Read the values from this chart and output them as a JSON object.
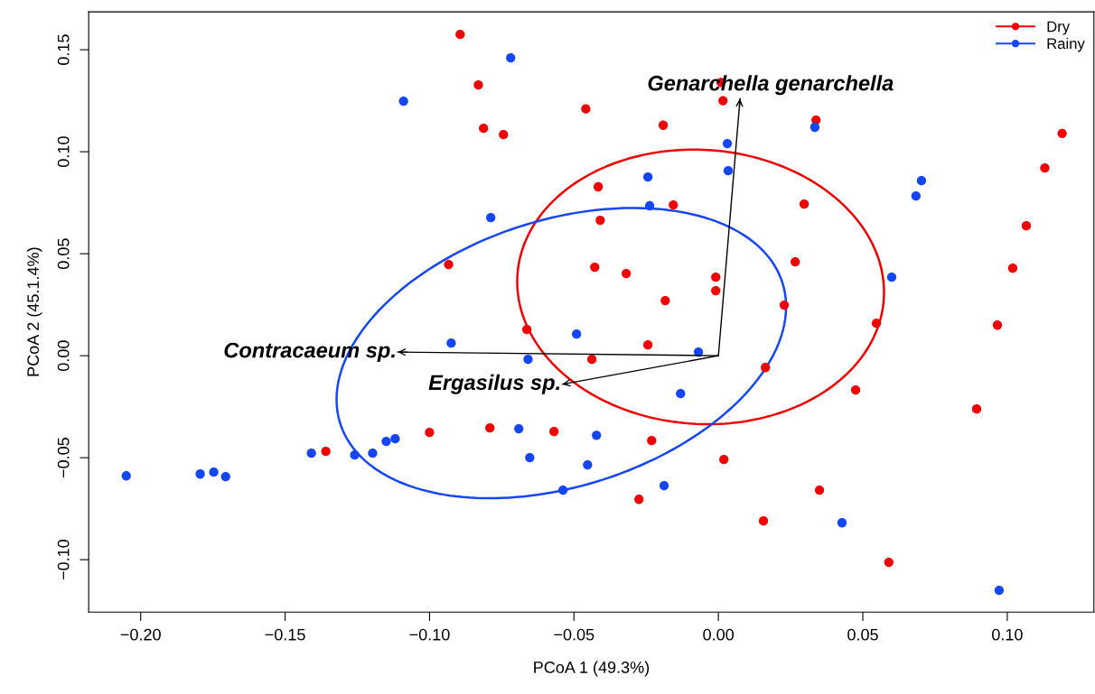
{
  "chart_data": {
    "type": "scatter",
    "xlabel": "PCoA 1 (49.3%)",
    "ylabel": "PCoA 2 (45.1.4%)",
    "xlim": [
      -0.218,
      0.13
    ],
    "ylim": [
      -0.1257,
      0.1686
    ],
    "xticks": [
      {
        "value": -0.2,
        "label": "−0.20"
      },
      {
        "value": -0.15,
        "label": "−0.15"
      },
      {
        "value": -0.1,
        "label": "−0.10"
      },
      {
        "value": -0.05,
        "label": "−0.05"
      },
      {
        "value": 0,
        "label": "0.00"
      },
      {
        "value": 0.05,
        "label": "0.05"
      },
      {
        "value": 0.1,
        "label": "0.10"
      }
    ],
    "yticks": [
      {
        "value": -0.1,
        "label": "−0.10"
      },
      {
        "value": -0.05,
        "label": "−0.05"
      },
      {
        "value": 0,
        "label": "0.00"
      },
      {
        "value": 0.05,
        "label": "0.05"
      },
      {
        "value": 0.1,
        "label": "0.10"
      },
      {
        "value": 0.15,
        "label": "0.15"
      }
    ],
    "grid": false,
    "legend": "top right",
    "marker": "circle",
    "series": [
      {
        "name": "Dry",
        "color": "#f00000",
        "x": [
          -0.0894,
          -0.0831,
          -0.0813,
          -0.0744,
          -0.0459,
          -0.0191,
          0.0009,
          0.0016,
          0.0338,
          0.119,
          0.113,
          -0.0416,
          -0.0409,
          -0.0156,
          0.0297,
          0.1066,
          0.1019,
          -0.0428,
          -0.0319,
          0.0266,
          -0.0009,
          -0.0009,
          -0.0184,
          0.0228,
          -0.0934,
          -0.0663,
          -0.1359,
          -0.1,
          -0.0791,
          -0.0569,
          -0.0438,
          0.0547,
          0.0966,
          -0.0244,
          0.0163,
          0.0475,
          0.0894,
          -0.0231,
          0.0019,
          0.035,
          -0.0275,
          0.0156,
          0.059
        ],
        "values": [
          0.1575,
          0.1327,
          0.1115,
          0.1084,
          0.121,
          0.113,
          0.134,
          0.125,
          0.1155,
          0.109,
          0.092,
          0.0828,
          0.0664,
          0.0739,
          0.0743,
          0.0637,
          0.0429,
          0.0434,
          0.0403,
          0.046,
          0.0385,
          0.0319,
          0.027,
          0.0248,
          0.0447,
          0.0128,
          -0.0469,
          -0.0376,
          -0.0354,
          -0.0372,
          -0.0018,
          0.0159,
          0.015,
          0.0053,
          -0.0058,
          -0.0168,
          -0.0261,
          -0.0416,
          -0.0509,
          -0.0659,
          -0.0704,
          -0.081,
          -0.1013
        ]
      },
      {
        "name": "Rainy",
        "color": "#1446f5",
        "x": [
          -0.0244,
          -0.0238,
          0.0031,
          0.0034,
          0.0334,
          0.0703,
          0.0684,
          0.06,
          -0.0719,
          -0.109,
          -0.0788,
          -0.0925,
          -0.0491,
          -0.0659,
          -0.205,
          -0.1794,
          -0.1747,
          -0.1706,
          -0.1409,
          -0.1259,
          -0.1197,
          -0.115,
          -0.1119,
          -0.0691,
          -0.0653,
          -0.0538,
          -0.0453,
          -0.0422,
          -0.0069,
          -0.0131,
          -0.0188,
          0.0428,
          0.0972
        ],
        "values": [
          0.0876,
          0.0735,
          0.104,
          0.0907,
          0.112,
          0.0858,
          0.0783,
          0.0385,
          0.146,
          0.1248,
          0.0677,
          0.0062,
          0.0106,
          -0.0018,
          -0.0589,
          -0.058,
          -0.0571,
          -0.0593,
          -0.0478,
          -0.0487,
          -0.0478,
          -0.042,
          -0.0407,
          -0.0358,
          -0.05,
          -0.0659,
          -0.0535,
          -0.039,
          0.0018,
          -0.0186,
          -0.0637,
          -0.0819,
          -0.115
        ]
      },
      {
        "type": "line",
        "name": "Genarchella genarchella",
        "color": "#000000",
        "marker": "none",
        "x": [
          0,
          0.0075
        ],
        "values": [
          0,
          0.126
        ]
      },
      {
        "type": "line",
        "name": "Contracaeum sp.",
        "color": "#000000",
        "marker": "none",
        "x": [
          0,
          -0.111
        ],
        "values": [
          0,
          0.0018
        ]
      },
      {
        "type": "line",
        "name": "Ergasilus sp.",
        "color": "#000000",
        "marker": "none",
        "x": [
          0,
          -0.054
        ],
        "values": [
          0,
          -0.014
        ]
      }
    ]
  }
}
